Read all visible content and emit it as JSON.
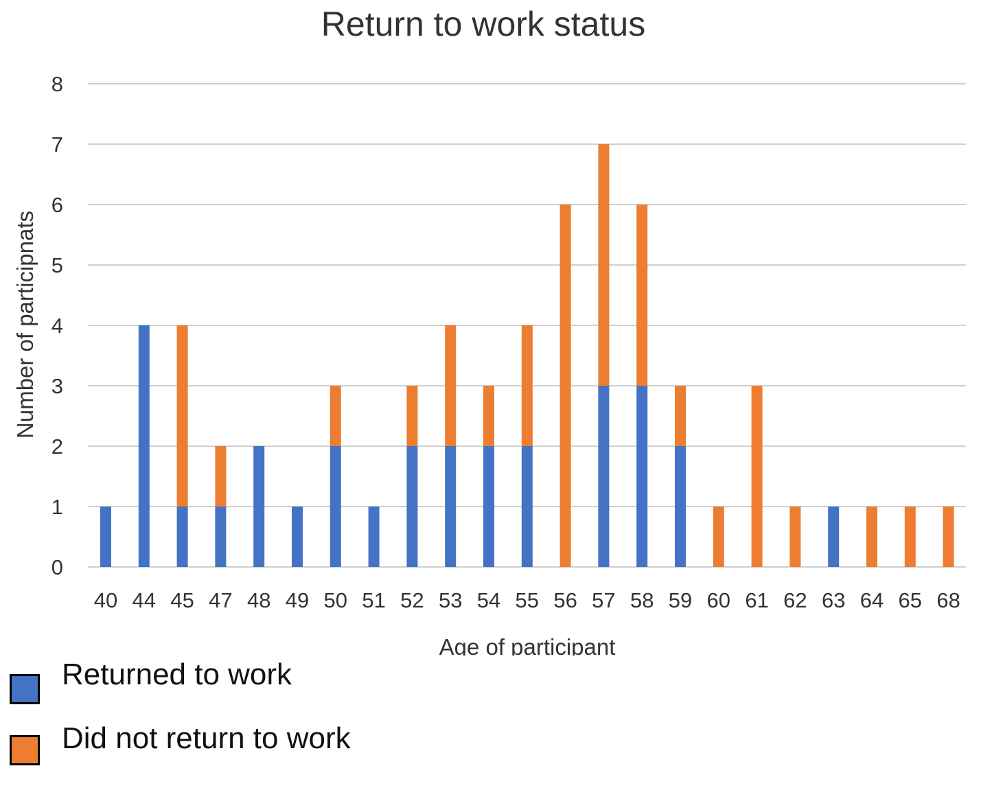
{
  "chart_data": {
    "type": "bar",
    "stacked": true,
    "title": "Return to work status",
    "xlabel": "Age of participant",
    "ylabel": "Number of participnats",
    "ylim": [
      0,
      8
    ],
    "yticks": [
      "0",
      "1",
      "2",
      "3",
      "4",
      "5",
      "6",
      "7",
      "8"
    ],
    "categories": [
      "40",
      "44",
      "45",
      "47",
      "48",
      "49",
      "50",
      "51",
      "52",
      "53",
      "54",
      "55",
      "56",
      "57",
      "58",
      "59",
      "60",
      "61",
      "62",
      "63",
      "64",
      "65",
      "68"
    ],
    "series": [
      {
        "name": "Returned to work",
        "color": "#4472c4",
        "values": [
          1,
          4,
          1,
          1,
          2,
          1,
          2,
          1,
          2,
          2,
          2,
          2,
          0,
          3,
          3,
          2,
          0,
          0,
          0,
          1,
          0,
          0,
          0
        ]
      },
      {
        "name": "Did not return to work",
        "color": "#ed7d31",
        "values": [
          0,
          0,
          3,
          1,
          0,
          0,
          1,
          0,
          1,
          2,
          1,
          2,
          6,
          4,
          3,
          1,
          1,
          3,
          1,
          0,
          1,
          1,
          1
        ]
      }
    ],
    "grid": true,
    "legend": "bottom-left"
  }
}
